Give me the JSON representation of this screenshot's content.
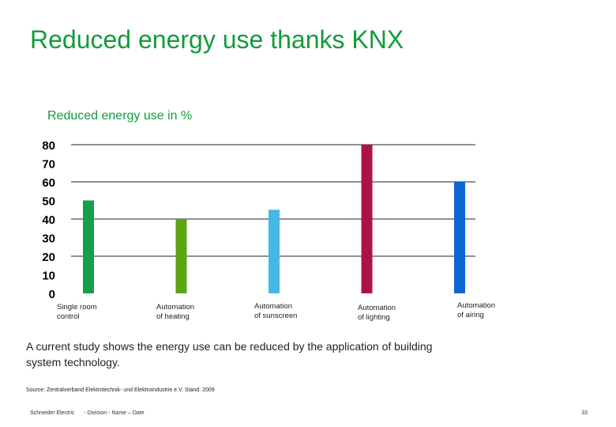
{
  "page": {
    "title": "Reduced energy use thanks KNX",
    "body_text": "A current study shows the energy use can be reduced by the application of building system technology.",
    "source": "Source: Zentralverband Elektrotechnik- und Elektroindustrie e.V. Stand: 2009",
    "footer": {
      "company": "Schneider Electric",
      "meta": "- Division - Name – Date",
      "page_number": "33"
    }
  },
  "chart_data": {
    "type": "bar",
    "title": "Reduced energy use in %",
    "categories": [
      [
        "Single room",
        "control"
      ],
      [
        "Automation",
        "of heating"
      ],
      [
        "Automation",
        "of sunscreen"
      ],
      [
        "Automation",
        "of lighting"
      ],
      [
        "Automation",
        "of airing"
      ]
    ],
    "values": [
      50,
      40,
      45,
      80,
      60
    ],
    "colors": [
      "#14a04a",
      "#5aa514",
      "#45b7e6",
      "#b0104a",
      "#0c67d6"
    ],
    "ylim": [
      0,
      80
    ],
    "yticks": [
      80,
      70,
      60,
      50,
      40,
      30,
      20,
      10,
      0
    ],
    "gridlines": [
      80,
      60,
      40,
      20
    ],
    "grid_color": "#222222",
    "xlabel": "",
    "ylabel": ""
  }
}
